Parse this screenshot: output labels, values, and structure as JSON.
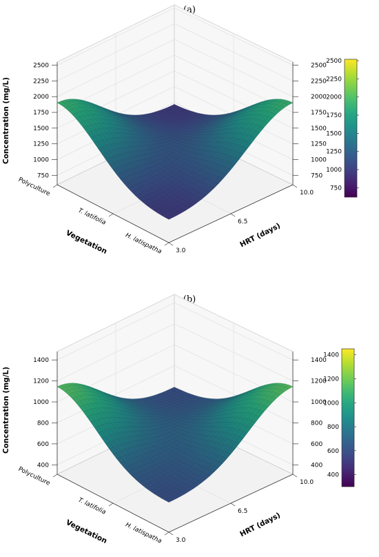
{
  "chart_data": [
    {
      "panel_label": "(a)",
      "type": "surface3d",
      "zlabel": "Concentration (mg/L)",
      "xlabel": "Vegetation",
      "ylabel": "HRT (days)",
      "x_categories": [
        "Polyculture",
        "T. latifolia",
        "H. latispatha"
      ],
      "x_italic": [
        false,
        true,
        true
      ],
      "y_ticks": [
        "3.0",
        "6.5",
        "10.0"
      ],
      "z_ticks": [
        "750",
        "1000",
        "1250",
        "1500",
        "1750",
        "2000",
        "2250",
        "2500"
      ],
      "zlim": [
        600,
        2550
      ],
      "surface": {
        "center": 1300,
        "vegetation_amplitude": 850,
        "hrt_amplitude": 650
      },
      "colorbar": {
        "ticks": [
          "750",
          "1000",
          "1250",
          "1500",
          "1750",
          "2000",
          "2250",
          "2500"
        ],
        "range": [
          620,
          2520
        ]
      },
      "colormap": "viridis"
    },
    {
      "panel_label": "(b)",
      "type": "surface3d",
      "zlabel": "Concentration (mg/L)",
      "xlabel": "Vegetation",
      "ylabel": "HRT (days)",
      "x_categories": [
        "Polyculture",
        "T. latifolia",
        "H. latispatha"
      ],
      "x_italic": [
        false,
        true,
        true
      ],
      "y_ticks": [
        "3.0",
        "6.5",
        "10.0"
      ],
      "z_ticks": [
        "400",
        "600",
        "800",
        "1000",
        "1200",
        "1400"
      ],
      "zlim": [
        310,
        1480
      ],
      "surface": {
        "center": 780,
        "vegetation_amplitude": 500,
        "hrt_amplitude": 430
      },
      "colorbar": {
        "ticks": [
          "400",
          "600",
          "800",
          "1000",
          "1200",
          "1400"
        ],
        "range": [
          300,
          1450
        ]
      },
      "colormap": "viridis"
    }
  ]
}
